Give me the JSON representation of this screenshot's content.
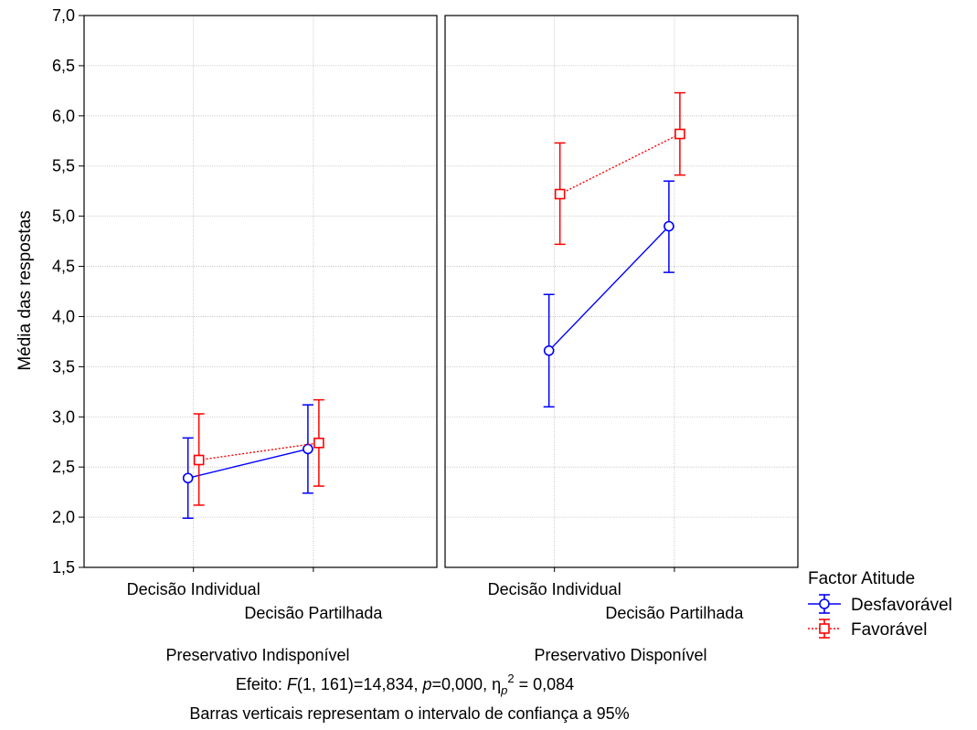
{
  "chart_data": {
    "type": "line",
    "ylabel": "Média das respostas",
    "ylim": [
      1.5,
      7.0
    ],
    "yticks": [
      "1,5",
      "2,0",
      "2,5",
      "3,0",
      "3,5",
      "4,0",
      "4,5",
      "5,0",
      "5,5",
      "6,0",
      "6,5",
      "7,0"
    ],
    "grid": true,
    "categories": [
      "Decisão Individual",
      "Decisão Partilhada"
    ],
    "panels": [
      {
        "label": "Preservativo Indisponível",
        "series": [
          {
            "name": "Desfavorável",
            "values": [
              2.39,
              2.68
            ],
            "ci_low": [
              1.99,
              2.24
            ],
            "ci_high": [
              2.79,
              3.12
            ]
          },
          {
            "name": "Favorável",
            "values": [
              2.57,
              2.74
            ],
            "ci_low": [
              2.12,
              2.31
            ],
            "ci_high": [
              3.03,
              3.17
            ]
          }
        ]
      },
      {
        "label": "Preservativo Disponível",
        "series": [
          {
            "name": "Desfavorável",
            "values": [
              3.66,
              4.9
            ],
            "ci_low": [
              3.1,
              4.44
            ],
            "ci_high": [
              4.22,
              5.35
            ]
          },
          {
            "name": "Favorável",
            "values": [
              5.22,
              5.82
            ],
            "ci_low": [
              4.72,
              5.41
            ],
            "ci_high": [
              5.73,
              6.23
            ]
          }
        ]
      }
    ],
    "legend": {
      "title": "Factor Atitude",
      "position": "bottom-right",
      "items": [
        {
          "name": "Desfavorável",
          "color": "#0000ff",
          "marker": "circle",
          "line": "solid"
        },
        {
          "name": "Favorável",
          "color": "#ff0000",
          "marker": "square",
          "line": "dotted"
        }
      ]
    },
    "annotations": {
      "effect_prefix": "Efeito: ",
      "effect_F": "F",
      "effect_mid1": "(1, 161)=14,834, ",
      "effect_p": "p",
      "effect_mid2": "=0,000, η",
      "effect_sub": "p",
      "effect_sup": "2",
      "effect_end": " = 0,084",
      "caption": "Barras verticais representam o intervalo de confiança a 95%"
    }
  }
}
